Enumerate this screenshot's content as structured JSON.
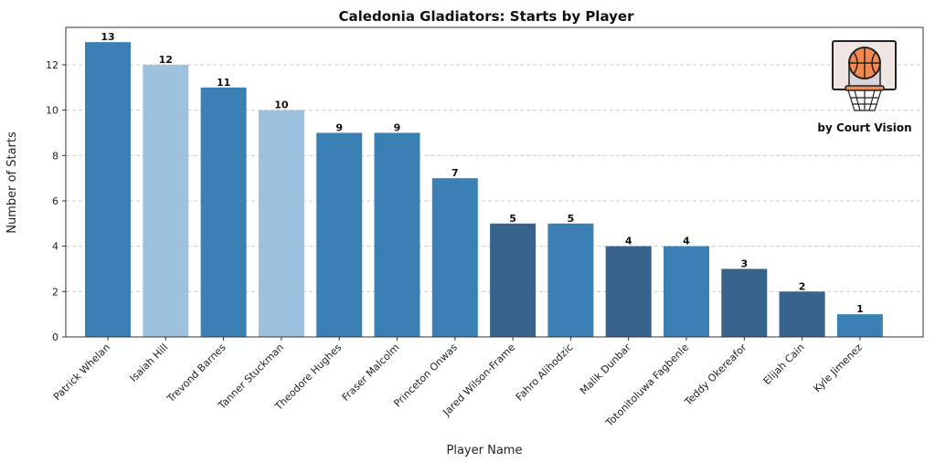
{
  "chart_data": {
    "type": "bar",
    "title": "Caledonia Gladiators: Starts by Player",
    "xlabel": "Player Name",
    "ylabel": "Number of Starts",
    "ylim": [
      0,
      13.65
    ],
    "yticks": [
      0,
      2,
      4,
      6,
      8,
      10,
      12
    ],
    "grid": "y-dashed",
    "categories": [
      "Patrick Whelan",
      "Isaiah Hill",
      "Trevond Barnes",
      "Tanner Stuckman",
      "Theodore Hughes",
      "Fraser Malcolm",
      "Princeton Onwas",
      "Jared Wilson-Frame",
      "Fahro Alihodzic",
      "Malik Dunbar",
      "Totonitoluwa Fagbenle",
      "Teddy Okereafor",
      "Elijah Cain",
      "Kyle Jimenez"
    ],
    "values": [
      13,
      12,
      11,
      10,
      9,
      9,
      7,
      5,
      5,
      4,
      4,
      3,
      2,
      1
    ],
    "bar_colors": [
      "#3a80b4",
      "#9dc0dc",
      "#3a80b4",
      "#9dc0dc",
      "#3a80b4",
      "#3a80b4",
      "#3a80b4",
      "#37628c",
      "#3a80b4",
      "#37628c",
      "#3a80b4",
      "#37628c",
      "#37628c",
      "#3a80b4"
    ]
  },
  "logo": {
    "icon": "basketball-hoop-icon",
    "credit": "by Court Vision"
  }
}
